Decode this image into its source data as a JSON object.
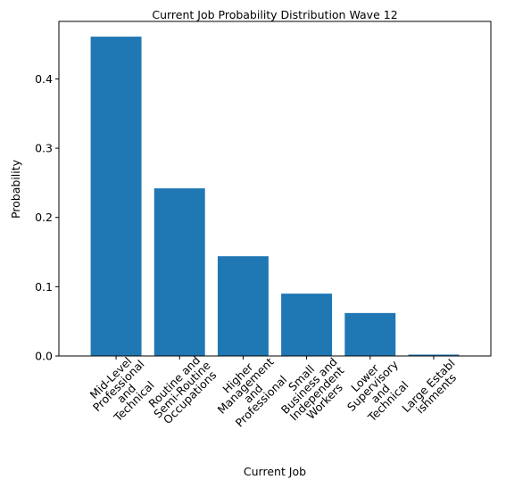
{
  "chart_data": {
    "type": "bar",
    "title": "Current Job Probability Distribution Wave 12",
    "xlabel": "Current Job",
    "ylabel": "Probability",
    "ylim": [
      0,
      0.483
    ],
    "yticks": [
      "0.0",
      "0.1",
      "0.2",
      "0.3",
      "0.4"
    ],
    "grid": false,
    "bar_color": "#1f77b4",
    "categories": [
      [
        "Mid-Level",
        "Professional",
        "and",
        "Technical"
      ],
      [
        "Routine and",
        "Semi-Routine",
        "Occupations"
      ],
      [
        "Higher",
        "Management",
        "and",
        "Professional"
      ],
      [
        "Small",
        "Business and",
        "Independent",
        "Workers"
      ],
      [
        "Lower",
        "Supervisory",
        "and",
        "Technical"
      ],
      [
        "Large Establ",
        "ishments"
      ]
    ],
    "values": [
      0.461,
      0.242,
      0.144,
      0.09,
      0.062,
      0.002
    ]
  }
}
